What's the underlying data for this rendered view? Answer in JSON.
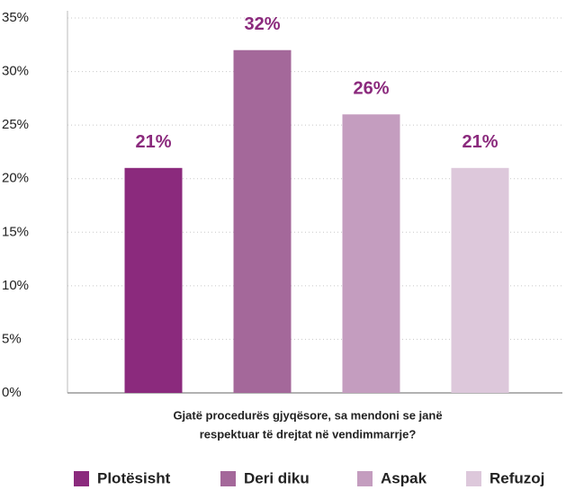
{
  "chart_data": {
    "type": "bar",
    "xlabel": [
      "Gjatë procedurës gjyqësore, sa mendoni se janë",
      "respektuar të drejtat në vendimmarrje?"
    ],
    "categories": [
      "Plotësisht",
      "Deri diku",
      "Aspak",
      "Refuzoj"
    ],
    "values": [
      21,
      32,
      26,
      21
    ],
    "value_labels": [
      "21%",
      "32%",
      "26%",
      "21%"
    ],
    "colors": [
      "#8b2a7d",
      "#a4689a",
      "#c49dbf",
      "#ddc8db"
    ],
    "ylim": [
      0,
      35
    ],
    "yticks": [
      {
        "value": 0,
        "label": "0%"
      },
      {
        "value": 5,
        "label": "5%"
      },
      {
        "value": 10,
        "label": "10%"
      },
      {
        "value": 15,
        "label": "15%"
      },
      {
        "value": 20,
        "label": "20%"
      },
      {
        "value": 25,
        "label": "25%"
      },
      {
        "value": 30,
        "label": "30%"
      },
      {
        "value": 35,
        "label": "35%"
      }
    ],
    "grid": true
  }
}
